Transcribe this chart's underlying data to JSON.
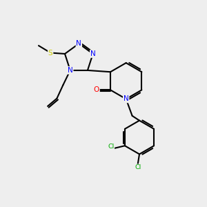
{
  "bg_color": "#eeeeee",
  "bond_color": "#000000",
  "colors": {
    "N": "#0000ff",
    "O": "#ff0000",
    "S": "#cccc00",
    "Cl": "#00aa00",
    "C": "#000000"
  }
}
